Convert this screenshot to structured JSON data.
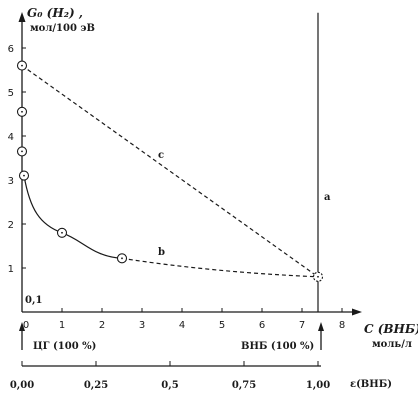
{
  "chart_data": {
    "type": "scatter",
    "y_title": "G₀ (H₂) ,",
    "y_unit": "мол/100 эВ",
    "x_title": "C (ВНБ) ,",
    "x_unit": "моль/л",
    "x2_title": "ε(ВНБ)",
    "x_ticks": [
      "0",
      "1",
      "2",
      "3",
      "4",
      "5",
      "6",
      "7",
      "8"
    ],
    "y_ticks": [
      "1",
      "2",
      "3",
      "4",
      "5",
      "6"
    ],
    "x2_ticks": [
      "0,00",
      "0,25",
      "0,5",
      "0,75",
      "1,00"
    ],
    "xlim": [
      0,
      8
    ],
    "ylim": [
      0,
      6.8
    ],
    "origin_label": "0,1",
    "left_marker_label": "ЦГ (100 %)",
    "right_marker_label": "ВНБ (100 %)",
    "series": [
      {
        "name": "a",
        "style": "solid-vertical",
        "x": [
          7.4,
          7.4
        ],
        "y": [
          0,
          6.8
        ]
      },
      {
        "name": "b",
        "style": "solid-then-dashed",
        "points": [
          {
            "x": 0.05,
            "y": 3.1
          },
          {
            "x": 1.0,
            "y": 1.8
          },
          {
            "x": 2.5,
            "y": 1.22
          },
          {
            "x": 7.4,
            "y": 0.8
          }
        ]
      },
      {
        "name": "c",
        "style": "dashed",
        "points": [
          {
            "x": 0.0,
            "y": 5.6
          },
          {
            "x": 7.4,
            "y": 0.8
          }
        ]
      }
    ],
    "extra_points": [
      {
        "x": 0.0,
        "y": 4.55
      },
      {
        "x": 0.0,
        "y": 3.65
      }
    ],
    "legend": "none",
    "grid": false
  }
}
